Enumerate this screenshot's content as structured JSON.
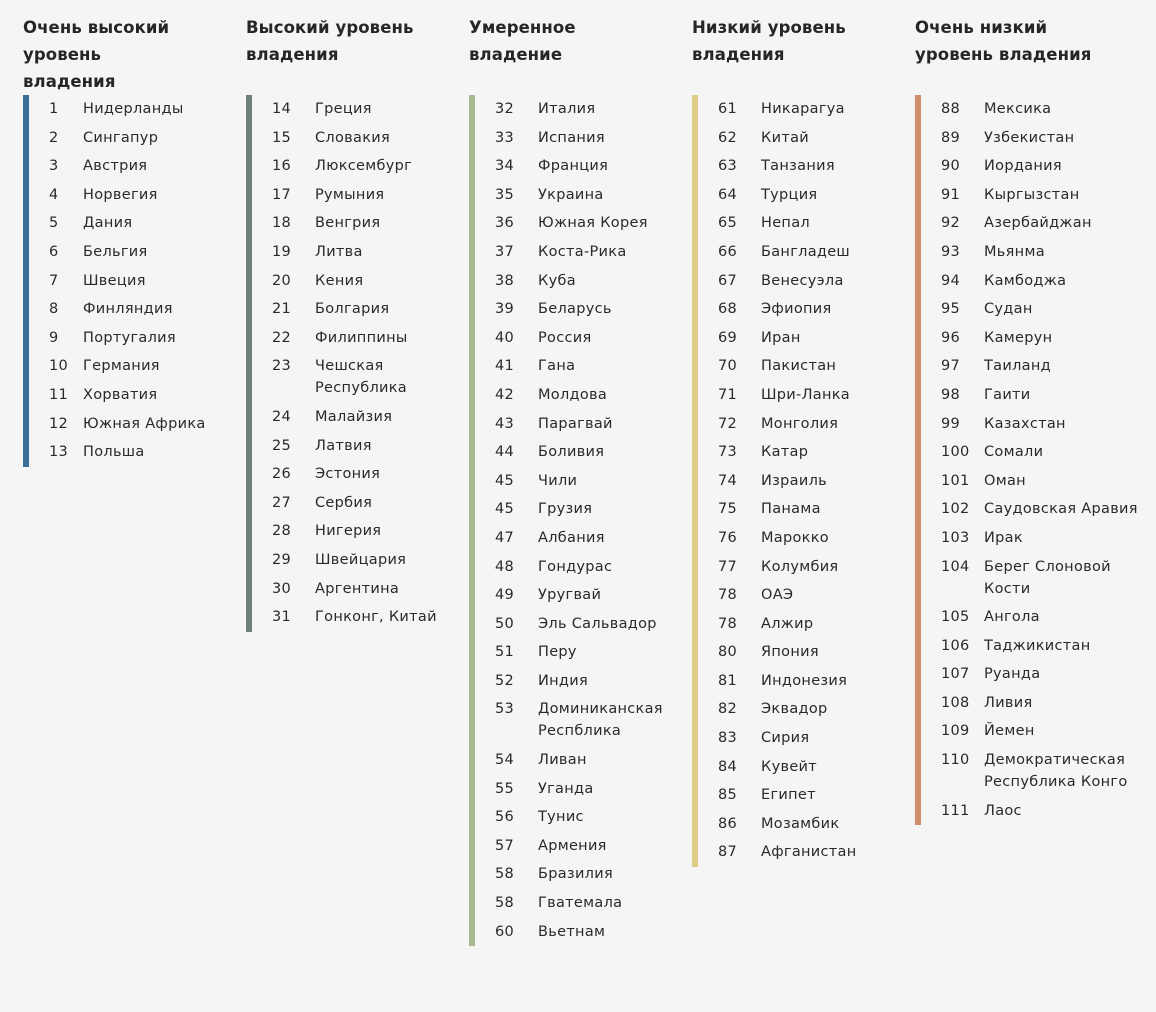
{
  "columns": [
    {
      "title": "Очень высокий уровень владения",
      "color": "#3a6f98",
      "rows": [
        {
          "rank": "1",
          "country": "Нидерланды"
        },
        {
          "rank": "2",
          "country": "Сингапур"
        },
        {
          "rank": "3",
          "country": "Австрия"
        },
        {
          "rank": "4",
          "country": "Норвегия"
        },
        {
          "rank": "5",
          "country": "Дания"
        },
        {
          "rank": "6",
          "country": "Бельгия"
        },
        {
          "rank": "7",
          "country": "Швеция"
        },
        {
          "rank": "8",
          "country": "Финляндия"
        },
        {
          "rank": "9",
          "country": "Португалия"
        },
        {
          "rank": "10",
          "country": "Германия"
        },
        {
          "rank": "11",
          "country": "Хорватия"
        },
        {
          "rank": "12",
          "country": "Южная Африка"
        },
        {
          "rank": "13",
          "country": "Польша"
        }
      ]
    },
    {
      "title": "Высокий уровень владения",
      "color": "#6b827a",
      "rows": [
        {
          "rank": "14",
          "country": "Греция"
        },
        {
          "rank": "15",
          "country": "Словакия"
        },
        {
          "rank": "16",
          "country": "Люксембург"
        },
        {
          "rank": "17",
          "country": "Румыния"
        },
        {
          "rank": "18",
          "country": "Венгрия"
        },
        {
          "rank": "19",
          "country": "Литва"
        },
        {
          "rank": "20",
          "country": "Кения"
        },
        {
          "rank": "21",
          "country": "Болгария"
        },
        {
          "rank": "22",
          "country": "Филиппины"
        },
        {
          "rank": "23",
          "country": "Чешская Республика"
        },
        {
          "rank": "24",
          "country": "Малайзия"
        },
        {
          "rank": "25",
          "country": "Латвия"
        },
        {
          "rank": "26",
          "country": "Эстония"
        },
        {
          "rank": "27",
          "country": "Сербия"
        },
        {
          "rank": "28",
          "country": "Нигерия"
        },
        {
          "rank": "29",
          "country": "Швейцария"
        },
        {
          "rank": "30",
          "country": "Аргентина"
        },
        {
          "rank": "31",
          "country": "Гонконг, Китай"
        }
      ]
    },
    {
      "title": "Умеренное владение",
      "color": "#a4b891",
      "rows": [
        {
          "rank": "32",
          "country": "Италия"
        },
        {
          "rank": "33",
          "country": "Испания"
        },
        {
          "rank": "34",
          "country": "Франция"
        },
        {
          "rank": "35",
          "country": "Украина"
        },
        {
          "rank": "36",
          "country": "Южная Корея"
        },
        {
          "rank": "37",
          "country": "Коста-Рика"
        },
        {
          "rank": "38",
          "country": "Куба"
        },
        {
          "rank": "39",
          "country": "Беларусь"
        },
        {
          "rank": "40",
          "country": "Россия"
        },
        {
          "rank": "41",
          "country": "Гана"
        },
        {
          "rank": "42",
          "country": "Молдова"
        },
        {
          "rank": "43",
          "country": "Парагвай"
        },
        {
          "rank": "44",
          "country": "Боливия"
        },
        {
          "rank": "45",
          "country": "Чили"
        },
        {
          "rank": "45",
          "country": "Грузия"
        },
        {
          "rank": "47",
          "country": "Албания"
        },
        {
          "rank": "48",
          "country": "Гондурас"
        },
        {
          "rank": "49",
          "country": "Уругвай"
        },
        {
          "rank": "50",
          "country": "Эль Сальвадор"
        },
        {
          "rank": "51",
          "country": "Перу"
        },
        {
          "rank": "52",
          "country": "Индия"
        },
        {
          "rank": "53",
          "country": "Доминиканская Респблика"
        },
        {
          "rank": "54",
          "country": "Ливан"
        },
        {
          "rank": "55",
          "country": "Уганда"
        },
        {
          "rank": "56",
          "country": "Тунис"
        },
        {
          "rank": "57",
          "country": "Армения"
        },
        {
          "rank": "58",
          "country": "Бразилия"
        },
        {
          "rank": "58",
          "country": "Гватемала"
        },
        {
          "rank": "60",
          "country": "Вьетнам"
        }
      ]
    },
    {
      "title": "Низкий уровень владения",
      "color": "#e0cd85",
      "rows": [
        {
          "rank": "61",
          "country": "Никарагуа"
        },
        {
          "rank": "62",
          "country": "Китай"
        },
        {
          "rank": "63",
          "country": "Танзания"
        },
        {
          "rank": "64",
          "country": "Турция"
        },
        {
          "rank": "65",
          "country": "Непал"
        },
        {
          "rank": "66",
          "country": "Бангладеш"
        },
        {
          "rank": "67",
          "country": "Венесуэла"
        },
        {
          "rank": "68",
          "country": "Эфиопия"
        },
        {
          "rank": "69",
          "country": "Иран"
        },
        {
          "rank": "70",
          "country": "Пакистан"
        },
        {
          "rank": "71",
          "country": "Шри-Ланка"
        },
        {
          "rank": "72",
          "country": "Монголия"
        },
        {
          "rank": "73",
          "country": "Катар"
        },
        {
          "rank": "74",
          "country": "Израиль"
        },
        {
          "rank": "75",
          "country": "Панама"
        },
        {
          "rank": "76",
          "country": "Марокко"
        },
        {
          "rank": "77",
          "country": "Колумбия"
        },
        {
          "rank": "78",
          "country": "ОАЭ"
        },
        {
          "rank": "78",
          "country": "Алжир"
        },
        {
          "rank": "80",
          "country": "Япония"
        },
        {
          "rank": "81",
          "country": "Индонезия"
        },
        {
          "rank": "82",
          "country": "Эквадор"
        },
        {
          "rank": "83",
          "country": "Сирия"
        },
        {
          "rank": "84",
          "country": "Кувейт"
        },
        {
          "rank": "85",
          "country": "Египет"
        },
        {
          "rank": "86",
          "country": "Мозамбик"
        },
        {
          "rank": "87",
          "country": "Афганистан"
        }
      ]
    },
    {
      "title": "Очень низкий уровень владения",
      "color": "#d08e6c",
      "rows": [
        {
          "rank": "88",
          "country": "Мексика"
        },
        {
          "rank": "89",
          "country": "Узбекистан"
        },
        {
          "rank": "90",
          "country": "Иордания"
        },
        {
          "rank": "91",
          "country": "Кыргызстан"
        },
        {
          "rank": "92",
          "country": "Азербайджан"
        },
        {
          "rank": "93",
          "country": "Мьянма"
        },
        {
          "rank": "94",
          "country": "Камбоджа"
        },
        {
          "rank": "95",
          "country": "Судан"
        },
        {
          "rank": "96",
          "country": "Камерун"
        },
        {
          "rank": "97",
          "country": "Таиланд"
        },
        {
          "rank": "98",
          "country": "Гаити"
        },
        {
          "rank": "99",
          "country": "Казахстан"
        },
        {
          "rank": "100",
          "country": "Сомали"
        },
        {
          "rank": "101",
          "country": "Оман"
        },
        {
          "rank": "102",
          "country": "Саудовская Аравия"
        },
        {
          "rank": "103",
          "country": "Ирак"
        },
        {
          "rank": "104",
          "country": "Берег Слоновой Кости"
        },
        {
          "rank": "105",
          "country": "Ангола"
        },
        {
          "rank": "106",
          "country": "Таджикистан"
        },
        {
          "rank": "107",
          "country": "Руанда"
        },
        {
          "rank": "108",
          "country": "Ливия"
        },
        {
          "rank": "109",
          "country": "Йемен"
        },
        {
          "rank": "110",
          "country": "Демократическая Республика Конго"
        },
        {
          "rank": "111",
          "country": "Лаос"
        }
      ]
    }
  ]
}
